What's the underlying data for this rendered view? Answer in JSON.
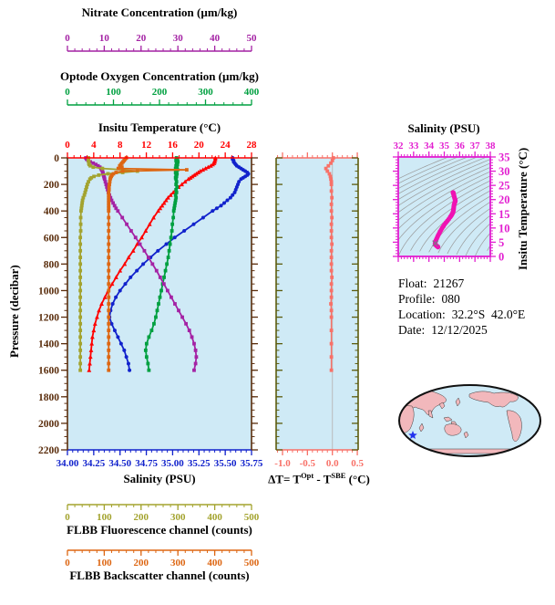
{
  "colors": {
    "background": "#ffffff",
    "panel_bg": "#cfeaf6",
    "temperature": "#ff0000",
    "salinity": "#1122cc",
    "oxygen": "#00a040",
    "nitrate": "#a422a4",
    "fluorescence": "#a3a32e",
    "backscatter": "#dd6612",
    "pressure_axis": "#5a2d0c",
    "delta_t": "#f87168",
    "delta_t_side_axis": "#5c5c0e",
    "zero_gridline": "#bbbbbb",
    "ts_frame": "#e21fd0",
    "ts_curve": "#ef12b3",
    "ts_core_line": "#ff2020",
    "ts_end_marker": "#8a6a8a",
    "contour": "#9a9a9a",
    "map_land": "#f2b8bc",
    "map_coast": "#3a3a3a",
    "map_ocean": "#cfeaf6",
    "map_outline": "#111111",
    "star": "#2233ee"
  },
  "labels": {
    "nitrate_title": "Nitrate Concentration (µm/kg)",
    "oxygen_title": "Optode Oxygen Concentration (µm/kg)",
    "temp_title": "Insitu Temperature (°C)",
    "pressure_title": "Pressure (decibar)",
    "salinity_title": "Salinity (PSU)",
    "fluor_title": "FLBB Fluorescence channel (counts)",
    "backscatter_title": "FLBB Backscatter channel (counts)",
    "ts_salinity_title": "Salinity (PSU)",
    "ts_temp_title": "Insitu Temperature (°C)",
    "dt_prefix": "ΔT= T",
    "dt_sup1": "Opt",
    "dt_mid": " - T",
    "dt_sup2": "SBE",
    "dt_suffix": " (°C)"
  },
  "info": {
    "float_label": "Float:",
    "float_value": "21267",
    "profile_label": "Profile:",
    "profile_value": "080",
    "location_label": "Location:",
    "location_value": "32.2°S  42.0°E",
    "date_label": "Date:",
    "date_value": "12/12/2025"
  },
  "chart_data": [
    {
      "id": "profiles",
      "type": "line",
      "ylabel": "Pressure (decibar)",
      "ylim": [
        0,
        2200
      ],
      "pressure_tick_labels": [
        "0",
        "200",
        "400",
        "600",
        "800",
        "1000",
        "1200",
        "1400",
        "1600",
        "1800",
        "2000",
        "2200"
      ],
      "pressure_dbar": [
        0,
        10,
        20,
        30,
        40,
        50,
        60,
        70,
        80,
        90,
        100,
        110,
        120,
        130,
        140,
        150,
        160,
        180,
        200,
        220,
        240,
        260,
        280,
        300,
        320,
        340,
        360,
        380,
        400,
        450,
        500,
        550,
        600,
        650,
        700,
        750,
        800,
        850,
        900,
        950,
        1000,
        1050,
        1100,
        1150,
        1200,
        1250,
        1300,
        1350,
        1400,
        1450,
        1500,
        1550,
        1600
      ],
      "series": [
        {
          "name": "Insitu Temperature (°C)",
          "color_key": "temperature",
          "marker": "triangle",
          "axis_range": [
            0,
            28
          ],
          "tick_labels": [
            "0",
            "4",
            "8",
            "12",
            "16",
            "20",
            "24",
            "28"
          ],
          "minor_step": 1,
          "values": [
            22.5,
            22.5,
            22.4,
            22.4,
            22.3,
            22.1,
            21.8,
            21.4,
            21.0,
            20.6,
            20.2,
            19.9,
            19.6,
            19.3,
            19.0,
            18.7,
            18.4,
            17.9,
            17.4,
            16.9,
            16.5,
            16.1,
            15.7,
            15.3,
            15.0,
            14.7,
            14.4,
            14.1,
            13.8,
            13.1,
            12.5,
            11.9,
            11.3,
            10.6,
            10.0,
            9.3,
            8.7,
            8.0,
            7.4,
            6.8,
            6.2,
            5.7,
            5.2,
            4.8,
            4.5,
            4.2,
            4.0,
            3.8,
            3.7,
            3.6,
            3.5,
            3.4,
            3.3
          ]
        },
        {
          "name": "Salinity (PSU)",
          "color_key": "salinity",
          "marker": "circle",
          "axis_range": [
            34.0,
            35.75
          ],
          "tick_labels": [
            "34.00",
            "34.25",
            "34.50",
            "34.75",
            "35.00",
            "35.25",
            "35.50",
            "35.75"
          ],
          "minor_step": 0.05,
          "values": [
            35.57,
            35.57,
            35.58,
            35.58,
            35.59,
            35.6,
            35.61,
            35.63,
            35.65,
            35.67,
            35.69,
            35.71,
            35.72,
            35.71,
            35.69,
            35.67,
            35.65,
            35.63,
            35.62,
            35.61,
            35.6,
            35.59,
            35.57,
            35.55,
            35.52,
            35.49,
            35.46,
            35.42,
            35.38,
            35.29,
            35.2,
            35.11,
            35.02,
            34.94,
            34.86,
            34.79,
            34.72,
            34.66,
            34.6,
            34.55,
            34.5,
            34.46,
            34.43,
            34.41,
            34.4,
            34.42,
            34.45,
            34.48,
            34.51,
            34.54,
            34.56,
            34.58,
            34.59
          ]
        },
        {
          "name": "Optode Oxygen Concentration (µm/kg)",
          "color_key": "oxygen",
          "marker": "square",
          "axis_range": [
            0,
            400
          ],
          "tick_labels": [
            "0",
            "100",
            "200",
            "300",
            "400"
          ],
          "minor_step": 20,
          "values": [
            237,
            239,
            236,
            240,
            237,
            239,
            236,
            238,
            235,
            239,
            237,
            235,
            238,
            236,
            237,
            235,
            236,
            237,
            236,
            238,
            236,
            237,
            235,
            236,
            235,
            234,
            233,
            232,
            231,
            230,
            228,
            227,
            225,
            223,
            221,
            219,
            216,
            213,
            210,
            207,
            204,
            201,
            198,
            195,
            192,
            188,
            183,
            177,
            172,
            170,
            172,
            175,
            177
          ]
        },
        {
          "name": "Nitrate Concentration (µm/kg)",
          "color_key": "nitrate",
          "marker": "square",
          "axis_range": [
            0,
            50
          ],
          "tick_labels": [
            "0",
            "10",
            "20",
            "30",
            "40",
            "50"
          ],
          "minor_step": 2,
          "values": [
            5.0,
            5.2,
            5.6,
            6.2,
            7.0,
            7.7,
            8.3,
            8.8,
            9.1,
            9.3,
            9.5,
            9.6,
            9.7,
            9.8,
            9.9,
            10.0,
            10.1,
            10.3,
            10.5,
            10.7,
            10.9,
            11.1,
            11.4,
            11.7,
            12.0,
            12.4,
            12.8,
            13.2,
            13.7,
            14.9,
            16.1,
            17.3,
            18.5,
            19.7,
            20.9,
            22.0,
            23.1,
            24.2,
            25.2,
            26.2,
            27.2,
            28.2,
            29.2,
            30.2,
            31.2,
            32.2,
            33.1,
            33.8,
            34.4,
            34.8,
            35.0,
            34.8,
            34.4
          ]
        },
        {
          "name": "FLBB Fluorescence channel (counts)",
          "color_key": "fluorescence",
          "marker": "square",
          "axis_range": [
            0,
            500
          ],
          "tick_labels": [
            "0",
            "100",
            "200",
            "300",
            "400",
            "500"
          ],
          "minor_step": 20,
          "values": [
            57,
            57,
            57,
            58,
            58,
            59,
            62,
            70,
            95,
            150,
            190,
            150,
            110,
            85,
            72,
            65,
            61,
            57,
            54,
            52,
            50,
            48,
            46,
            43,
            41,
            40,
            39,
            38,
            37,
            36,
            36,
            36,
            35,
            35,
            35,
            35,
            35,
            35,
            35,
            35,
            35,
            35,
            35,
            35,
            35,
            35,
            35,
            35,
            35,
            35,
            35,
            35,
            35
          ]
        },
        {
          "name": "FLBB Backscatter channel (counts)",
          "color_key": "backscatter",
          "marker": "square",
          "axis_range": [
            0,
            500
          ],
          "tick_labels": [
            "0",
            "100",
            "200",
            "300",
            "400",
            "500"
          ],
          "minor_step": 20,
          "values": [
            160,
            157,
            154,
            151,
            148,
            145,
            142,
            148,
            138,
            324,
            150,
            132,
            125,
            121,
            119,
            117,
            116,
            115,
            114,
            113,
            113,
            112,
            112,
            112,
            112,
            112,
            112,
            112,
            112,
            112,
            112,
            112,
            112,
            112,
            112,
            112,
            112,
            112,
            112,
            112,
            112,
            112,
            112,
            112,
            112,
            112,
            112,
            112,
            112,
            112,
            112,
            112,
            112
          ]
        }
      ]
    },
    {
      "id": "delta_t",
      "type": "line",
      "xlabel": "ΔT= T^Opt - T^SBE (°C)",
      "xlim": [
        -1.0,
        0.5
      ],
      "x_tick_labels": [
        "-1.0",
        "-0.5",
        "0.0",
        "0.5"
      ],
      "x_minor_step": 0.1,
      "ylim": [
        0,
        2200
      ],
      "pressure_dbar": [
        0,
        20,
        40,
        60,
        80,
        100,
        120,
        140,
        160,
        180,
        200,
        250,
        300,
        350,
        400,
        450,
        500,
        550,
        600,
        650,
        700,
        750,
        800,
        850,
        900,
        950,
        1000,
        1050,
        1100,
        1150,
        1200,
        1300,
        1400,
        1500,
        1600
      ],
      "values": [
        0.02,
        0.0,
        -0.03,
        -0.08,
        -0.13,
        -0.1,
        -0.06,
        -0.04,
        -0.03,
        -0.02,
        -0.02,
        -0.02,
        -0.01,
        -0.02,
        -0.02,
        -0.01,
        -0.02,
        -0.02,
        -0.02,
        -0.01,
        -0.02,
        -0.02,
        -0.02,
        -0.02,
        -0.01,
        -0.02,
        -0.02,
        -0.02,
        -0.03,
        -0.02,
        -0.02,
        -0.02,
        -0.02,
        -0.02,
        -0.02
      ]
    },
    {
      "id": "ts_diagram",
      "type": "scatter",
      "xlabel": "Salinity (PSU)",
      "ylabel": "Insitu Temperature (°C)",
      "xlim": [
        32,
        38
      ],
      "ylim": [
        0,
        35
      ],
      "x_tick_labels": [
        "32",
        "33",
        "34",
        "35",
        "36",
        "37",
        "38"
      ],
      "y_tick_labels": [
        "0",
        "5",
        "10",
        "15",
        "20",
        "25",
        "30",
        "35"
      ],
      "x_minor_step": 0.2,
      "y_minor_step": 1,
      "series_from": [
        "Salinity (PSU)",
        "Insitu Temperature (°C)"
      ],
      "background_contours": "density isopycnals"
    }
  ]
}
